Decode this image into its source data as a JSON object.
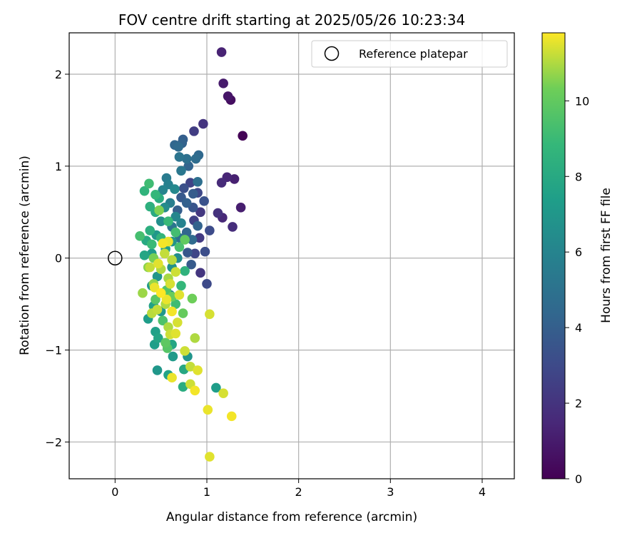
{
  "chart_data": {
    "type": "scatter",
    "title": "FOV centre drift starting at 2025/05/26 10:23:34",
    "xlabel": "Angular distance from reference (arcmin)",
    "ylabel": "Rotation from reference (arcmin)",
    "xlim": [
      -0.5,
      4.35
    ],
    "ylim": [
      -2.4,
      2.45
    ],
    "xticks": [
      0,
      1,
      2,
      3,
      4
    ],
    "yticks": [
      -2,
      -1,
      0,
      1,
      2
    ],
    "xtick_labels": [
      "0",
      "1",
      "2",
      "3",
      "4"
    ],
    "ytick_labels": [
      "−2",
      "−1",
      "0",
      "1",
      "2"
    ],
    "grid": true,
    "legend_position": "top-right",
    "legend": [
      {
        "label": "Reference platepar",
        "marker": "open-circle"
      }
    ],
    "reference_point": {
      "x": 0,
      "y": 0
    },
    "colorbar": {
      "label": "Hours from first FF file",
      "range": [
        0,
        11.8
      ],
      "ticks": [
        0,
        2,
        4,
        6,
        8,
        10
      ],
      "colormap": "viridis"
    },
    "series": [
      {
        "points": [
          {
            "x": 1.39,
            "y": 1.33,
            "h": 0.1
          },
          {
            "x": 1.26,
            "y": 1.72,
            "h": 0.5
          },
          {
            "x": 1.23,
            "y": 1.76,
            "h": 0.8
          },
          {
            "x": 1.18,
            "y": 1.9,
            "h": 1.0
          },
          {
            "x": 1.16,
            "y": 2.24,
            "h": 1.3
          },
          {
            "x": 1.3,
            "y": 0.86,
            "h": 1.2
          },
          {
            "x": 1.22,
            "y": 0.88,
            "h": 1.4
          },
          {
            "x": 1.16,
            "y": 0.82,
            "h": 1.6
          },
          {
            "x": 1.37,
            "y": 0.55,
            "h": 1.1
          },
          {
            "x": 1.17,
            "y": 0.44,
            "h": 1.5
          },
          {
            "x": 1.12,
            "y": 0.49,
            "h": 1.9
          },
          {
            "x": 1.28,
            "y": 0.34,
            "h": 1.7
          },
          {
            "x": 0.96,
            "y": 1.46,
            "h": 2.0
          },
          {
            "x": 0.86,
            "y": 1.38,
            "h": 2.4
          },
          {
            "x": 0.93,
            "y": 0.5,
            "h": 2.2
          },
          {
            "x": 0.86,
            "y": 0.41,
            "h": 2.6
          },
          {
            "x": 0.92,
            "y": 0.22,
            "h": 2.3
          },
          {
            "x": 0.93,
            "y": -0.16,
            "h": 2.1
          },
          {
            "x": 0.87,
            "y": 0.05,
            "h": 2.8
          },
          {
            "x": 1.0,
            "y": -0.28,
            "h": 3.0
          },
          {
            "x": 1.03,
            "y": 0.3,
            "h": 3.1
          },
          {
            "x": 0.98,
            "y": 0.07,
            "h": 3.2
          },
          {
            "x": 0.82,
            "y": 0.82,
            "h": 2.7
          },
          {
            "x": 0.75,
            "y": 0.76,
            "h": 3.3
          },
          {
            "x": 0.9,
            "y": 0.71,
            "h": 2.9
          },
          {
            "x": 0.97,
            "y": 0.62,
            "h": 3.4
          },
          {
            "x": 0.79,
            "y": 0.06,
            "h": 3.6
          },
          {
            "x": 0.83,
            "y": -0.07,
            "h": 3.8
          },
          {
            "x": 0.74,
            "y": 1.29,
            "h": 4.0
          },
          {
            "x": 0.73,
            "y": 1.25,
            "h": 4.2
          },
          {
            "x": 0.65,
            "y": 1.23,
            "h": 4.4
          },
          {
            "x": 0.69,
            "y": 1.21,
            "h": 4.6
          },
          {
            "x": 0.91,
            "y": 1.12,
            "h": 4.5
          },
          {
            "x": 0.88,
            "y": 1.08,
            "h": 4.7
          },
          {
            "x": 0.78,
            "y": 1.08,
            "h": 4.9
          },
          {
            "x": 0.7,
            "y": 1.1,
            "h": 5.1
          },
          {
            "x": 0.8,
            "y": 1.0,
            "h": 4.3
          },
          {
            "x": 0.72,
            "y": 0.95,
            "h": 5.3
          },
          {
            "x": 0.9,
            "y": 0.83,
            "h": 4.8
          },
          {
            "x": 0.85,
            "y": 0.7,
            "h": 3.9
          },
          {
            "x": 0.78,
            "y": 0.6,
            "h": 4.1
          },
          {
            "x": 0.72,
            "y": 0.66,
            "h": 3.7
          },
          {
            "x": 0.68,
            "y": 0.52,
            "h": 4.0
          },
          {
            "x": 0.85,
            "y": 0.55,
            "h": 3.5
          },
          {
            "x": 0.9,
            "y": 0.35,
            "h": 4.2
          },
          {
            "x": 0.78,
            "y": 0.28,
            "h": 4.4
          },
          {
            "x": 0.84,
            "y": 0.2,
            "h": 4.6
          },
          {
            "x": 0.7,
            "y": 0.22,
            "h": 5.0
          },
          {
            "x": 0.62,
            "y": 0.34,
            "h": 5.2
          },
          {
            "x": 0.56,
            "y": 0.87,
            "h": 5.5
          },
          {
            "x": 0.58,
            "y": 0.8,
            "h": 5.8
          },
          {
            "x": 0.52,
            "y": 0.74,
            "h": 6.0
          },
          {
            "x": 0.65,
            "y": 0.75,
            "h": 6.2
          },
          {
            "x": 0.6,
            "y": 0.6,
            "h": 5.7
          },
          {
            "x": 0.54,
            "y": 0.55,
            "h": 6.4
          },
          {
            "x": 0.66,
            "y": 0.45,
            "h": 6.1
          },
          {
            "x": 0.5,
            "y": 0.4,
            "h": 6.6
          },
          {
            "x": 0.72,
            "y": 0.38,
            "h": 5.9
          },
          {
            "x": 0.62,
            "y": 0.18,
            "h": 6.8
          },
          {
            "x": 0.45,
            "y": 0.25,
            "h": 7.0
          },
          {
            "x": 0.4,
            "y": 0.05,
            "h": 7.2
          },
          {
            "x": 0.55,
            "y": 0.1,
            "h": 7.4
          },
          {
            "x": 0.68,
            "y": 0.0,
            "h": 6.5
          },
          {
            "x": 0.62,
            "y": -0.1,
            "h": 6.7
          },
          {
            "x": 0.46,
            "y": -0.2,
            "h": 6.9
          },
          {
            "x": 0.4,
            "y": -0.3,
            "h": 7.1
          },
          {
            "x": 0.6,
            "y": -0.4,
            "h": 6.3
          },
          {
            "x": 0.42,
            "y": -0.52,
            "h": 7.6
          },
          {
            "x": 0.5,
            "y": -0.58,
            "h": 7.0
          },
          {
            "x": 0.36,
            "y": -0.66,
            "h": 7.3
          },
          {
            "x": 0.44,
            "y": -0.8,
            "h": 7.5
          },
          {
            "x": 0.47,
            "y": -0.87,
            "h": 7.7
          },
          {
            "x": 0.43,
            "y": -0.94,
            "h": 7.4
          },
          {
            "x": 0.62,
            "y": -0.94,
            "h": 7.8
          },
          {
            "x": 0.63,
            "y": -1.07,
            "h": 7.2
          },
          {
            "x": 0.46,
            "y": -1.22,
            "h": 7.0
          },
          {
            "x": 0.58,
            "y": -1.27,
            "h": 7.6
          },
          {
            "x": 0.75,
            "y": -1.21,
            "h": 7.9
          },
          {
            "x": 0.79,
            "y": -1.07,
            "h": 6.9
          },
          {
            "x": 0.74,
            "y": -1.4,
            "h": 8.2
          },
          {
            "x": 1.1,
            "y": -1.41,
            "h": 7.3
          },
          {
            "x": 0.32,
            "y": 0.03,
            "h": 7.8
          },
          {
            "x": 0.34,
            "y": 0.19,
            "h": 8.0
          },
          {
            "x": 0.38,
            "y": 0.3,
            "h": 8.3
          },
          {
            "x": 0.44,
            "y": 0.5,
            "h": 8.1
          },
          {
            "x": 0.38,
            "y": 0.56,
            "h": 8.4
          },
          {
            "x": 0.48,
            "y": 0.65,
            "h": 8.2
          },
          {
            "x": 0.32,
            "y": 0.73,
            "h": 8.6
          },
          {
            "x": 0.37,
            "y": 0.81,
            "h": 9.1
          },
          {
            "x": 0.44,
            "y": 0.69,
            "h": 8.8
          },
          {
            "x": 0.27,
            "y": 0.24,
            "h": 9.3
          },
          {
            "x": 0.4,
            "y": 0.15,
            "h": 9.0
          },
          {
            "x": 0.5,
            "y": 0.22,
            "h": 8.7
          },
          {
            "x": 0.58,
            "y": 0.4,
            "h": 8.9
          },
          {
            "x": 0.66,
            "y": 0.28,
            "h": 9.2
          },
          {
            "x": 0.7,
            "y": 0.12,
            "h": 9.4
          },
          {
            "x": 0.76,
            "y": -0.14,
            "h": 8.5
          },
          {
            "x": 0.72,
            "y": -0.3,
            "h": 8.8
          },
          {
            "x": 0.66,
            "y": -0.5,
            "h": 9.1
          },
          {
            "x": 0.56,
            "y": -0.35,
            "h": 9.6
          },
          {
            "x": 0.44,
            "y": -0.45,
            "h": 9.8
          },
          {
            "x": 0.52,
            "y": -0.68,
            "h": 9.5
          },
          {
            "x": 0.55,
            "y": -0.92,
            "h": 9.9
          },
          {
            "x": 0.57,
            "y": -0.98,
            "h": 9.7
          },
          {
            "x": 0.74,
            "y": -0.6,
            "h": 10.1
          },
          {
            "x": 0.84,
            "y": -0.44,
            "h": 10.3
          },
          {
            "x": 0.76,
            "y": 0.2,
            "h": 10.0
          },
          {
            "x": 0.48,
            "y": 0.52,
            "h": 10.5
          },
          {
            "x": 0.42,
            "y": 0.0,
            "h": 10.4
          },
          {
            "x": 0.36,
            "y": -0.1,
            "h": 10.6
          },
          {
            "x": 0.3,
            "y": -0.38,
            "h": 10.8
          },
          {
            "x": 0.42,
            "y": -0.28,
            "h": 10.7
          },
          {
            "x": 0.58,
            "y": -0.22,
            "h": 10.9
          },
          {
            "x": 0.5,
            "y": -0.12,
            "h": 11.0
          },
          {
            "x": 0.54,
            "y": 0.05,
            "h": 11.2
          },
          {
            "x": 0.62,
            "y": -0.02,
            "h": 11.1
          },
          {
            "x": 0.66,
            "y": -0.15,
            "h": 11.3
          },
          {
            "x": 0.6,
            "y": -0.28,
            "h": 11.4
          },
          {
            "x": 0.7,
            "y": -0.4,
            "h": 11.5
          },
          {
            "x": 0.56,
            "y": -0.45,
            "h": 11.6
          },
          {
            "x": 0.46,
            "y": -0.56,
            "h": 11.2
          },
          {
            "x": 0.62,
            "y": -0.58,
            "h": 11.7
          },
          {
            "x": 0.68,
            "y": -0.7,
            "h": 11.4
          },
          {
            "x": 0.58,
            "y": -0.75,
            "h": 11.0
          },
          {
            "x": 0.6,
            "y": -0.83,
            "h": 11.3
          },
          {
            "x": 0.66,
            "y": -0.82,
            "h": 11.5
          },
          {
            "x": 0.58,
            "y": 0.18,
            "h": 11.6
          },
          {
            "x": 0.52,
            "y": 0.16,
            "h": 11.7
          },
          {
            "x": 0.47,
            "y": -0.06,
            "h": 11.5
          },
          {
            "x": 0.38,
            "y": -0.1,
            "h": 11.2
          },
          {
            "x": 0.43,
            "y": -0.32,
            "h": 11.6
          },
          {
            "x": 0.4,
            "y": -0.6,
            "h": 11.1
          },
          {
            "x": 0.76,
            "y": -1.01,
            "h": 11.3
          },
          {
            "x": 0.87,
            "y": -0.87,
            "h": 11.0
          },
          {
            "x": 1.03,
            "y": -0.61,
            "h": 11.4
          },
          {
            "x": 0.82,
            "y": -1.18,
            "h": 11.2
          },
          {
            "x": 0.9,
            "y": -1.22,
            "h": 11.5
          },
          {
            "x": 0.62,
            "y": -1.3,
            "h": 11.6
          },
          {
            "x": 0.82,
            "y": -1.37,
            "h": 11.3
          },
          {
            "x": 0.87,
            "y": -1.44,
            "h": 11.7
          },
          {
            "x": 1.18,
            "y": -1.47,
            "h": 11.4
          },
          {
            "x": 1.01,
            "y": -1.65,
            "h": 11.6
          },
          {
            "x": 1.27,
            "y": -1.72,
            "h": 11.7
          },
          {
            "x": 1.03,
            "y": -2.16,
            "h": 11.5
          },
          {
            "x": 0.5,
            "y": -0.38,
            "h": 11.8
          },
          {
            "x": 0.55,
            "y": -0.5,
            "h": 11.0
          },
          {
            "x": 0.62,
            "y": -0.42,
            "h": 10.2
          }
        ]
      }
    ]
  }
}
